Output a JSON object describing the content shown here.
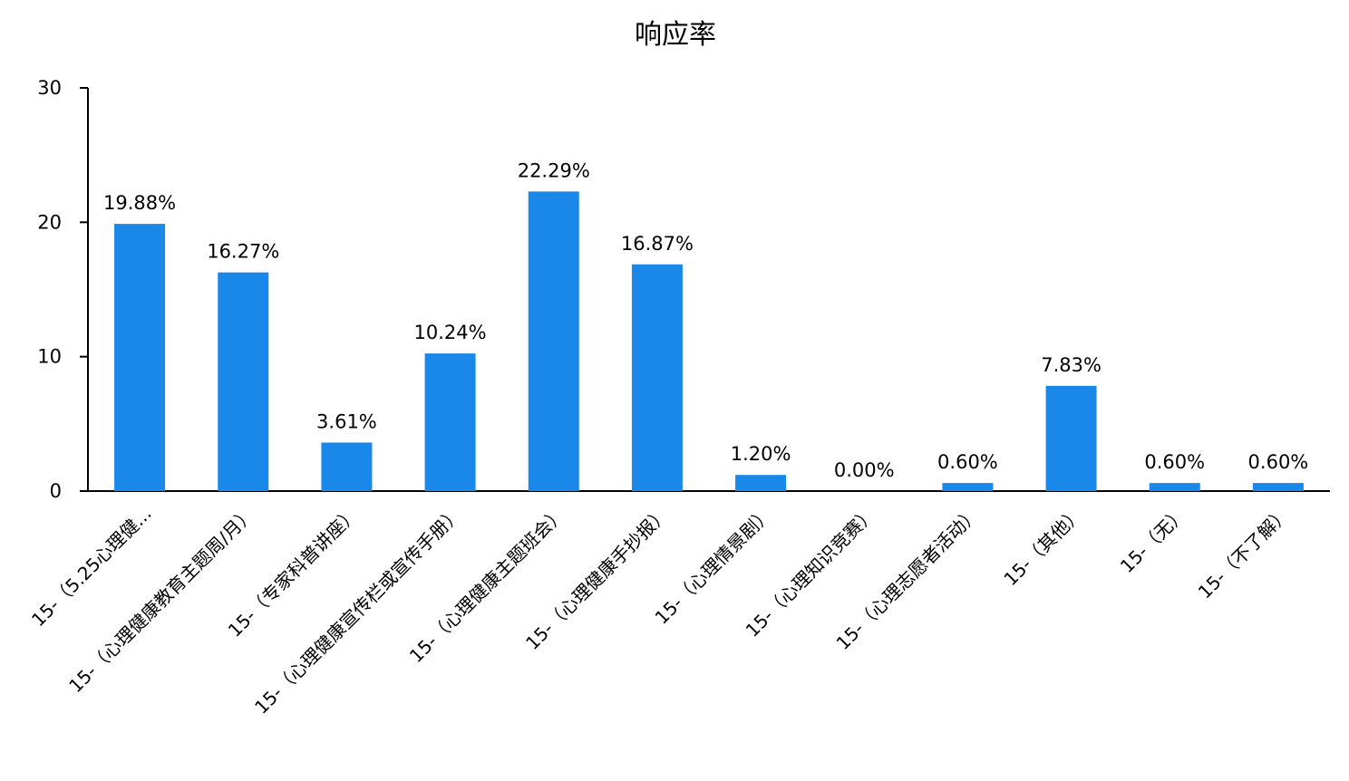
{
  "chart_data": {
    "type": "bar",
    "title": "响应率",
    "categories": [
      "15-（5.25心理健...",
      "15-（心理健康教育主题周/月）",
      "15-（专家科普讲座）",
      "15-（心理健康宣传栏或宣传手册）",
      "15-（心理健康主题班会）",
      "15-（心理健康手抄报）",
      "15-（心理情景剧）",
      "15-（心理知识竞赛）",
      "15-（心理志愿者活动）",
      "15-（其他）",
      "15-（无）",
      "15-（不了解）"
    ],
    "values": [
      19.88,
      16.27,
      3.61,
      10.24,
      22.29,
      16.87,
      1.2,
      0.0,
      0.6,
      7.83,
      0.6,
      0.6
    ],
    "data_labels": [
      "19.88%",
      "16.27%",
      "3.61%",
      "10.24%",
      "22.29%",
      "16.87%",
      "1.20%",
      "0.00%",
      "0.60%",
      "7.83%",
      "0.60%",
      "0.60%"
    ],
    "yticks": [
      0,
      10,
      20,
      30
    ],
    "ylim": [
      0,
      30
    ],
    "grid": false,
    "bar_color": "#1a88e8"
  }
}
